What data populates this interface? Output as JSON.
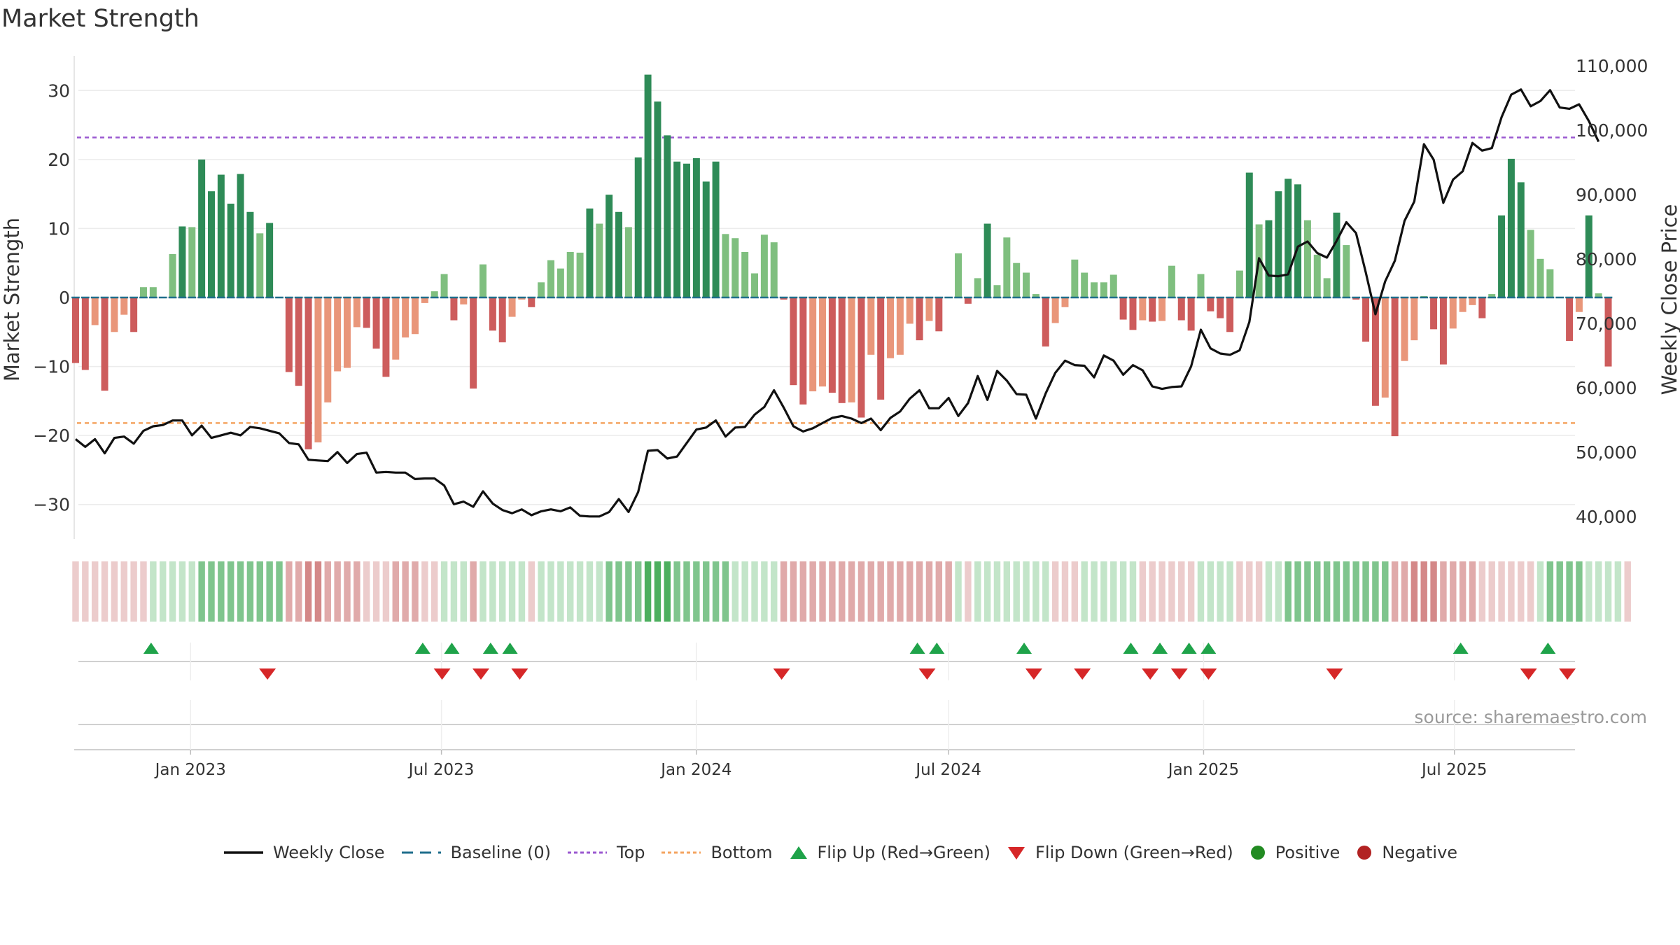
{
  "page": {
    "title": "Market Strength"
  },
  "source_note": "source: sharemaestro.com",
  "colors": {
    "strong_pos": "#2e8b57",
    "weak_pos": "#7fbf7f",
    "strong_neg": "#cd5c5c",
    "weak_neg": "#e9967a",
    "price": "#111111",
    "baseline": "#1f6e8c",
    "top": "#9b59d0",
    "bottom": "#f4a460",
    "flip_up": "#1fa34a",
    "flip_down": "#d62728",
    "positive": "#228b22",
    "negative": "#b22222"
  },
  "legend": [
    {
      "key": "close",
      "label": "Weekly Close"
    },
    {
      "key": "baseline",
      "label": "Baseline (0)"
    },
    {
      "key": "top",
      "label": "Top"
    },
    {
      "key": "bottom",
      "label": "Bottom"
    },
    {
      "key": "flip_up",
      "label": "Flip Up (Red→Green)"
    },
    {
      "key": "flip_down",
      "label": "Flip Down (Green→Red)"
    },
    {
      "key": "positive",
      "label": "Positive"
    },
    {
      "key": "negative",
      "label": "Negative"
    }
  ],
  "chart_data": {
    "type": "bar",
    "title": "Market Strength",
    "ylabel": "Market Strength",
    "y2label": "Weekly Close Price",
    "ylim": [
      -35,
      35
    ],
    "y2lim": [
      36500,
      111500
    ],
    "y_ticks": [
      30,
      20,
      10,
      0,
      -10,
      -20,
      -30
    ],
    "y_tick_labels": [
      "30",
      "20",
      "10",
      "0",
      "−10",
      "−20",
      "−30"
    ],
    "y2_ticks": [
      110000,
      100000,
      90000,
      80000,
      70000,
      60000,
      50000,
      40000
    ],
    "y2_tick_labels": [
      "110,000",
      "100,000",
      "90,000",
      "80,000",
      "70,000",
      "60,000",
      "50,000",
      "40,000"
    ],
    "x_ticks": [
      "2023-01-01",
      "2023-07-01",
      "2024-01-01",
      "2024-07-01",
      "2025-01-01",
      "2025-07-01"
    ],
    "x_tick_labels": [
      "Jan 2023",
      "Jul 2023",
      "Jan 2024",
      "Jul 2024",
      "Jan 2025",
      "Jul 2025"
    ],
    "xlim": [
      "2022-10-09",
      "2025-09-26"
    ],
    "first_week": "2022-10-10",
    "top_line": 23.2,
    "bottom_line": -18.2,
    "grid": true,
    "legend_position": "bottom",
    "strength": [
      -9.5,
      -10.5,
      -4,
      -13.5,
      -5,
      -2.5,
      -5,
      1.5,
      1.5,
      0,
      6.3,
      10.3,
      10.2,
      20,
      15.4,
      17.8,
      13.6,
      17.9,
      12.4,
      9.3,
      10.8,
      0,
      -10.8,
      -12.8,
      -22,
      -21,
      -15.2,
      -10.7,
      -10.2,
      -4.3,
      -4.4,
      -7.4,
      -11.5,
      -9,
      -5.8,
      -5.3,
      -0.8,
      0.9,
      3.4,
      -3.3,
      -1,
      -13.2,
      4.8,
      -4.8,
      -6.5,
      -2.8,
      -0.3,
      -1.4,
      2.2,
      5.4,
      4.2,
      6.6,
      6.5,
      12.9,
      10.7,
      14.9,
      12.4,
      10.2,
      20.3,
      32.3,
      28.4,
      23.5,
      19.7,
      19.4,
      20.2,
      16.8,
      19.7,
      9.2,
      8.6,
      6.6,
      3.5,
      9.1,
      8,
      -0.3,
      -12.7,
      -15.5,
      -13.6,
      -12.9,
      -13.8,
      -15.3,
      -15.2,
      -17.4,
      -8.3,
      -14.8,
      -8.8,
      -8.3,
      -3.8,
      -6.2,
      -3.4,
      -4.9,
      0.1,
      6.4,
      -0.9,
      2.8,
      10.7,
      1.8,
      8.7,
      5,
      3.6,
      0.5,
      -7.1,
      -3.7,
      -1.4,
      5.5,
      3.6,
      2.2,
      2.2,
      3.3,
      -3.2,
      -4.7,
      -3.3,
      -3.5,
      -3.4,
      4.6,
      -3.3,
      -4.8,
      3.4,
      -2,
      -3,
      -5,
      3.9,
      18.1,
      10.6,
      11.2,
      15.4,
      17.2,
      16.4,
      11.2,
      6.2,
      2.8,
      12.3,
      7.6,
      -0.3,
      -6.4,
      -15.7,
      -14.5,
      -20.1,
      -9.2,
      -6.2,
      0.2,
      -4.6,
      -9.7,
      -4.5,
      -2.1,
      -1.1,
      -3,
      0.5,
      11.9,
      20.1,
      16.7,
      9.8,
      5.6,
      4.1,
      -0.1,
      -6.3,
      -2.1,
      11.9,
      0.6,
      -10
    ],
    "weekly_close": [
      52000,
      50800,
      52000,
      49800,
      52200,
      52400,
      51300,
      53300,
      54000,
      54200,
      54900,
      54900,
      52600,
      54100,
      52200,
      52600,
      53000,
      52600,
      53900,
      53700,
      53300,
      52900,
      51400,
      51200,
      48800,
      48700,
      48600,
      50000,
      48300,
      49700,
      49900,
      46800,
      46900,
      46800,
      46800,
      45800,
      45900,
      45900,
      44800,
      41900,
      42300,
      41500,
      43900,
      42000,
      41000,
      40500,
      41100,
      40200,
      40800,
      41100,
      40800,
      41400,
      40100,
      40000,
      40000,
      40700,
      42700,
      40700,
      43800,
      50200,
      50300,
      49000,
      49300,
      51400,
      53500,
      53800,
      54900,
      52400,
      53800,
      53900,
      55800,
      57000,
      59600,
      56900,
      54000,
      53200,
      53700,
      54500,
      55300,
      55600,
      55200,
      54500,
      55200,
      53400,
      55300,
      56300,
      58300,
      59600,
      56800,
      56800,
      58400,
      55600,
      57600,
      61800,
      58100,
      62600,
      61100,
      59000,
      58900,
      55200,
      59100,
      62300,
      64200,
      63500,
      63400,
      61600,
      65000,
      64200,
      62000,
      63500,
      62700,
      60200,
      59800,
      60100,
      60200,
      63300,
      69000,
      66100,
      65300,
      65100,
      65800,
      70200,
      80100,
      77400,
      77300,
      77600,
      81900,
      82700,
      80900,
      80200,
      82800,
      85700,
      84000,
      77900,
      71400,
      76500,
      79700,
      85900,
      88900,
      97800,
      95400,
      88700,
      92300,
      93600,
      98000,
      96800,
      97200,
      102000,
      105500,
      106300,
      103700,
      104500,
      106200,
      103500,
      103300,
      104000,
      101400,
      98200
    ],
    "regime": [
      -1,
      -1,
      -1,
      -1,
      -1,
      -1,
      -1,
      -1,
      1,
      1,
      1,
      1,
      1,
      2,
      2,
      2,
      2,
      2,
      2,
      2,
      2,
      2,
      -2,
      -2,
      -3,
      -3,
      -2,
      -2,
      -2,
      -2,
      -1,
      -1,
      -1,
      -2,
      -2,
      -2,
      -1,
      -1,
      1,
      1,
      1,
      -2,
      1,
      1,
      1,
      1,
      1,
      -1,
      1,
      1,
      1,
      1,
      1,
      1,
      1,
      2,
      2,
      2,
      2,
      3,
      3,
      3,
      2,
      2,
      2,
      2,
      2,
      2,
      1,
      1,
      1,
      1,
      1,
      -2,
      -2,
      -2,
      -2,
      -2,
      -2,
      -2,
      -2,
      -2,
      -2,
      -2,
      -2,
      -2,
      -2,
      -2,
      -2,
      -2,
      -2,
      1,
      -1,
      1,
      1,
      1,
      1,
      1,
      1,
      1,
      1,
      -1,
      -1,
      -1,
      1,
      1,
      1,
      1,
      1,
      1,
      -1,
      -1,
      -1,
      -1,
      -1,
      -1,
      1,
      1,
      1,
      1,
      -1,
      -1,
      -1,
      1,
      1,
      2,
      2,
      2,
      2,
      2,
      2,
      2,
      2,
      2,
      2,
      2,
      -2,
      -2,
      -3,
      -3,
      -3,
      -2,
      -2,
      -2,
      -2,
      -1,
      -1,
      -1,
      -1,
      -1,
      -1,
      1,
      2,
      2,
      2,
      2,
      1,
      1,
      1,
      1,
      -1
    ],
    "flip_up_dates": [
      "2022-12-05",
      "2023-06-19",
      "2023-07-10",
      "2023-08-07",
      "2023-08-21",
      "2024-06-10",
      "2024-06-24",
      "2024-08-26",
      "2024-11-11",
      "2024-12-02",
      "2024-12-23",
      "2025-01-06",
      "2025-07-07",
      "2025-09-08"
    ],
    "flip_down_dates": [
      "2023-02-27",
      "2023-07-03",
      "2023-07-31",
      "2023-08-28",
      "2024-03-04",
      "2024-06-17",
      "2024-09-02",
      "2024-10-07",
      "2024-11-25",
      "2024-12-16",
      "2025-01-06",
      "2025-04-07",
      "2025-08-25",
      "2025-09-22"
    ]
  }
}
